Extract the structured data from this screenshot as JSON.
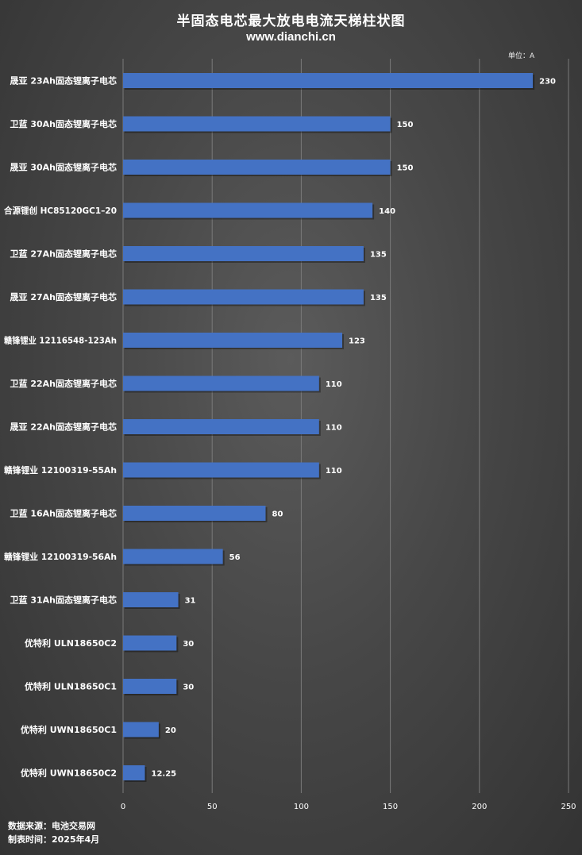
{
  "header": {
    "title": "半固态电芯最大放电电流天梯柱状图",
    "subtitle": "www.dianchi.cn",
    "unit": "单位：A"
  },
  "footer": {
    "source": "数据来源：电池交易网",
    "date": "制表时间：2025年4月"
  },
  "colors": {
    "bar": "#4472c4",
    "grid": "#7a7a7a",
    "text": "#ffffff"
  },
  "chart_data": {
    "type": "bar",
    "orientation": "horizontal",
    "title": "半固态电芯最大放电电流天梯柱状图",
    "subtitle": "www.dianchi.cn",
    "unit": "单位：A",
    "categories": [
      "晟亚 23Ah固态锂离子电芯",
      "卫蓝 30Ah固态锂离子电芯",
      "晟亚 30Ah固态锂离子电芯",
      "合源锂创 HC85120GC1–20",
      "卫蓝 27Ah固态锂离子电芯",
      "晟亚 27Ah固态锂离子电芯",
      "赣锋锂业 12116548-123Ah",
      "卫蓝 22Ah固态锂离子电芯",
      "晟亚 22Ah固态锂离子电芯",
      "赣锋锂业 12100319-55Ah",
      "卫蓝 16Ah固态锂离子电芯",
      "赣锋锂业 12100319-56Ah",
      "卫蓝 31Ah固态锂离子电芯",
      "优特利 ULN18650C2",
      "优特利 ULN18650C1",
      "优特利 UWN18650C1",
      "优特利 UWN18650C2"
    ],
    "values": [
      230,
      150,
      150,
      140,
      135,
      135,
      123,
      110,
      110,
      110,
      80,
      56,
      31,
      30,
      30,
      20,
      12.25
    ],
    "value_labels": [
      "230",
      "150",
      "150",
      "140",
      "135",
      "135",
      "123",
      "110",
      "110",
      "110",
      "80",
      "56",
      "31",
      "30",
      "30",
      "20",
      "12.25"
    ],
    "xlim": [
      0,
      250
    ],
    "xticks": [
      0,
      50,
      100,
      150,
      200,
      250
    ],
    "grid": true,
    "legend": "none"
  }
}
